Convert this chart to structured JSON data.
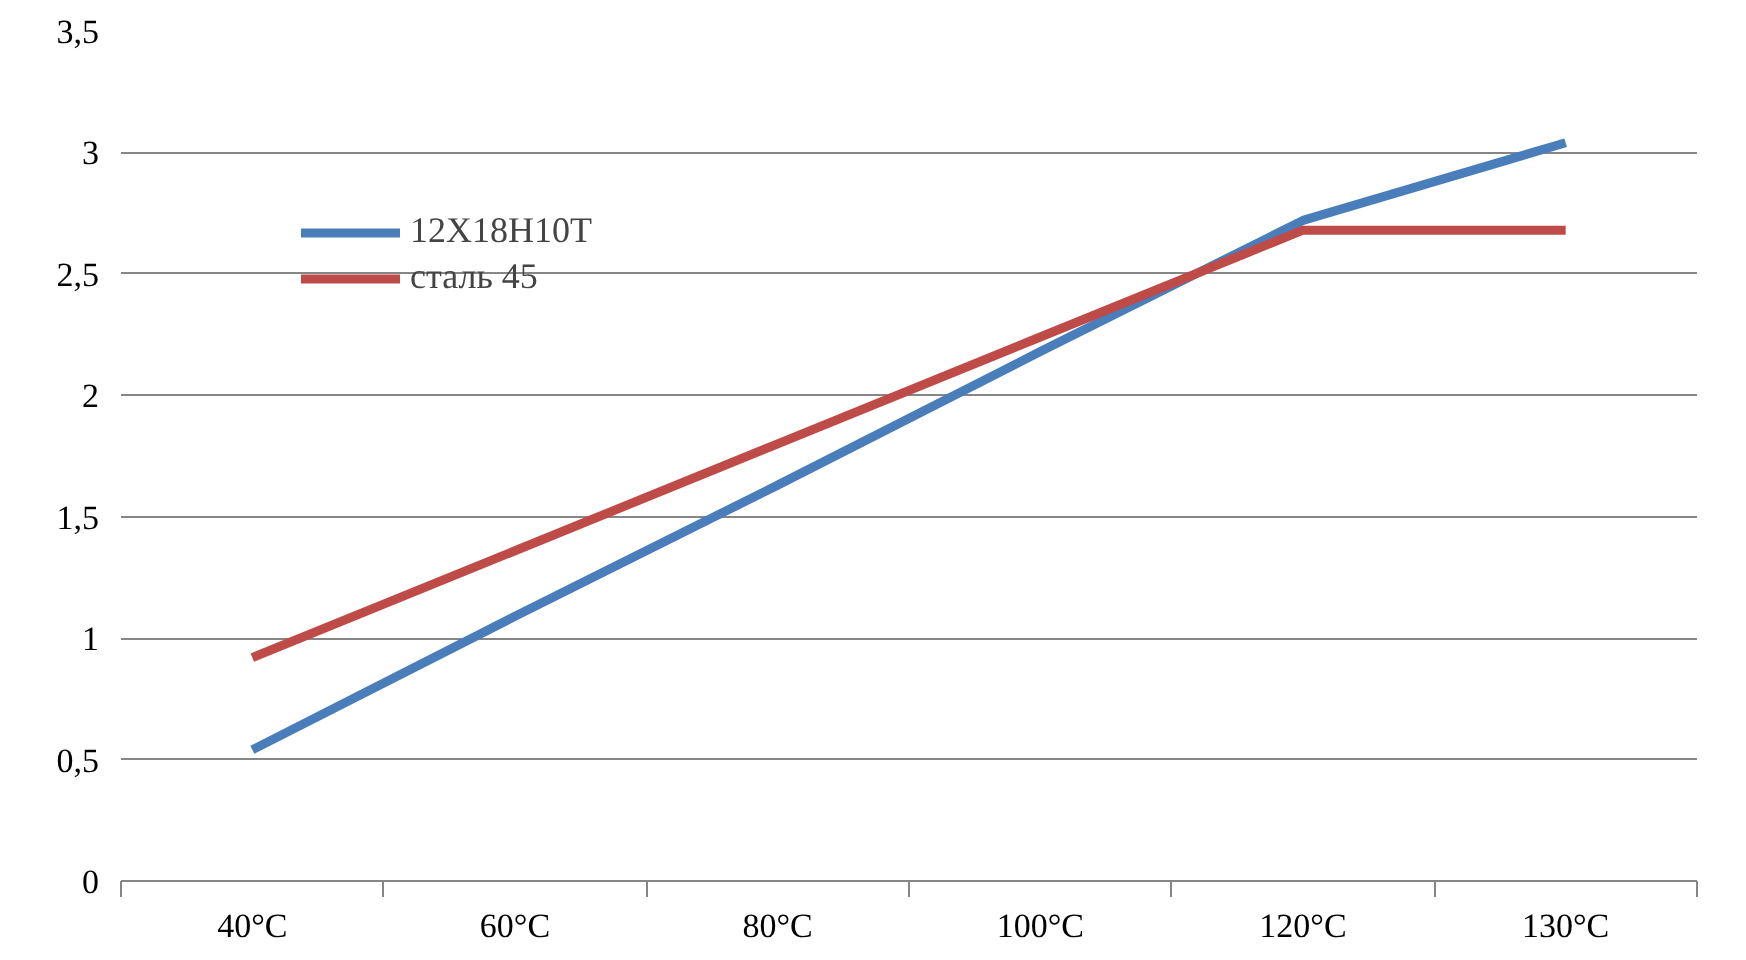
{
  "chart_data": {
    "type": "line",
    "categories": [
      "40°C",
      "60°C",
      "80°C",
      "100°C",
      "120°C",
      "130°C"
    ],
    "series": [
      {
        "name": "12Х18Н10Т",
        "color": "#4a7ebb",
        "values": [
          0.54,
          1.09,
          1.63,
          2.18,
          2.72,
          3.04
        ]
      },
      {
        "name": "сталь 45",
        "color": "#be4b48",
        "values": [
          0.92,
          1.36,
          1.8,
          2.24,
          2.68,
          2.68
        ]
      }
    ],
    "ylim": [
      0,
      3.5
    ],
    "yticks": [
      0,
      {
        "value": 0.5,
        "label": "0,5"
      },
      1,
      {
        "value": 1.5,
        "label": "1,5"
      },
      2,
      {
        "value": 2.5,
        "label": "2,5"
      },
      3,
      {
        "value": 3.5,
        "label": "3,5"
      }
    ],
    "grid": "y",
    "legend": "top left",
    "marker": "none",
    "line_style": "solid"
  }
}
